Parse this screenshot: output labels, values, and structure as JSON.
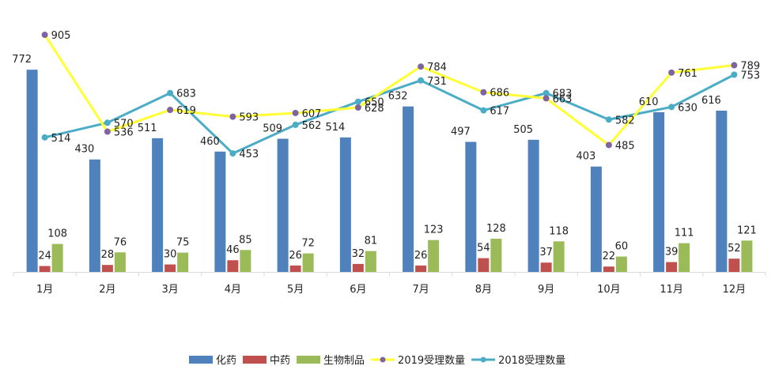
{
  "chart_data": {
    "type": "bar",
    "categories": [
      "1月",
      "2月",
      "3月",
      "4月",
      "5月",
      "6月",
      "7月",
      "8月",
      "9月",
      "10月",
      "11月",
      "12月"
    ],
    "series": [
      {
        "name": "化药",
        "type": "bar",
        "color": "#4f81bd",
        "values": [
          772,
          430,
          511,
          460,
          509,
          514,
          632,
          497,
          505,
          403,
          610,
          616
        ]
      },
      {
        "name": "中药",
        "type": "bar",
        "color": "#c0504d",
        "values": [
          24,
          28,
          30,
          46,
          26,
          32,
          26,
          54,
          37,
          22,
          39,
          52
        ]
      },
      {
        "name": "生物制品",
        "type": "bar",
        "color": "#9bbb59",
        "values": [
          108,
          76,
          75,
          85,
          72,
          81,
          123,
          128,
          118,
          60,
          111,
          121
        ]
      },
      {
        "name": "2019受理数量",
        "type": "line",
        "color": "#ffff33",
        "marker_color": "#8064a2",
        "values": [
          905,
          536,
          619,
          593,
          607,
          628,
          784,
          686,
          663,
          485,
          761,
          789
        ]
      },
      {
        "name": "2018受理数量",
        "type": "line",
        "color": "#4bacc6",
        "marker_color": "#4bacc6",
        "values": [
          514,
          570,
          683,
          453,
          562,
          650,
          731,
          617,
          683,
          582,
          630,
          753
        ]
      }
    ],
    "ylim": [
      0,
      930
    ],
    "grid": false,
    "legend_position": "bottom"
  }
}
